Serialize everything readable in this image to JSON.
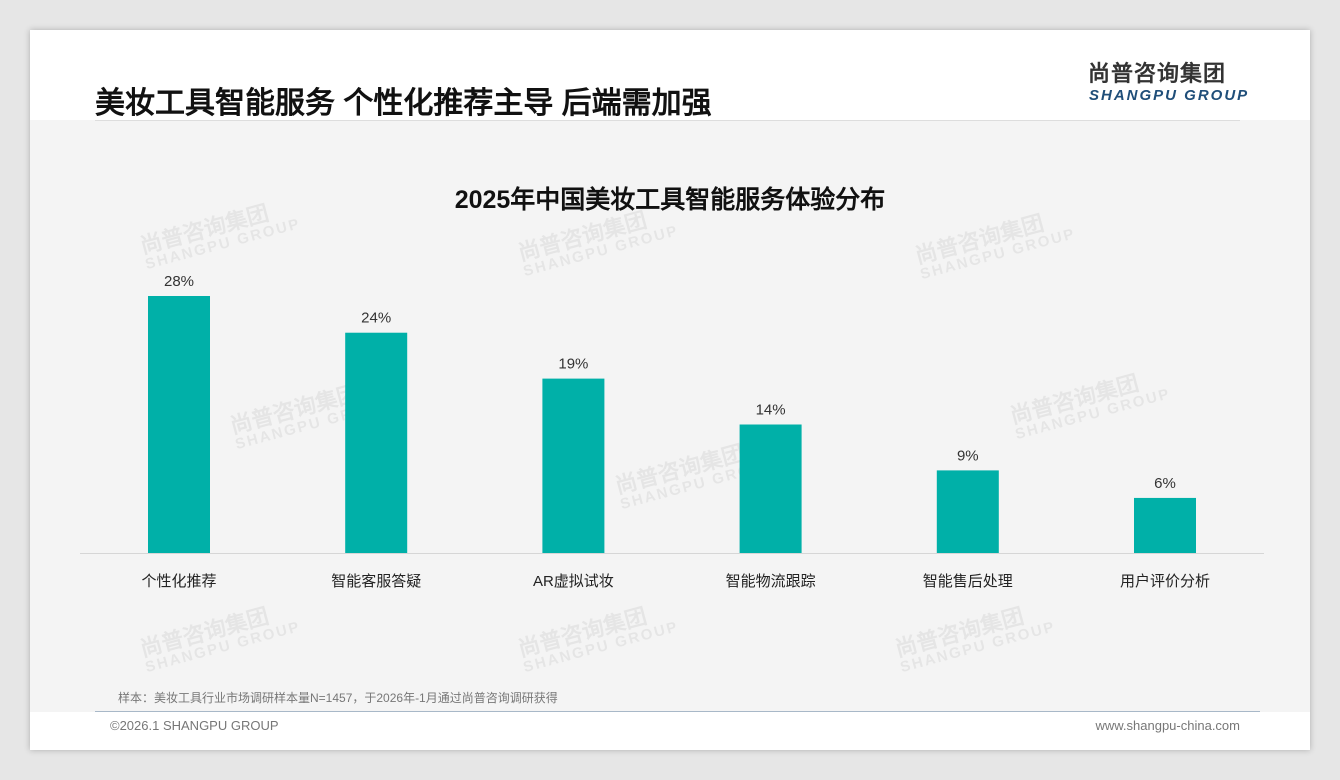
{
  "header": {
    "title": "美妆工具智能服务 个性化推荐主导 后端需加强",
    "logo_cn": "尚普咨询集团",
    "logo_en": "SHANGPU GROUP"
  },
  "chart_data": {
    "type": "bar",
    "title": "2025年中国美妆工具智能服务体验分布",
    "categories": [
      "个性化推荐",
      "智能客服答疑",
      "AR虚拟试妆",
      "智能物流跟踪",
      "智能售后处理",
      "用户评价分析"
    ],
    "values": [
      28,
      24,
      19,
      14,
      9,
      6
    ],
    "labels": [
      "28%",
      "24%",
      "19%",
      "14%",
      "9%",
      "6%"
    ],
    "ylim": [
      0,
      30
    ],
    "color": "#00b0a8",
    "grid": false
  },
  "footer": {
    "note": "样本：美妆工具行业市场调研样本量N=1457，于2026年-1月通过尚普咨询调研获得",
    "copyright": "©2026.1 SHANGPU GROUP",
    "url": "www.shangpu-china.com"
  }
}
